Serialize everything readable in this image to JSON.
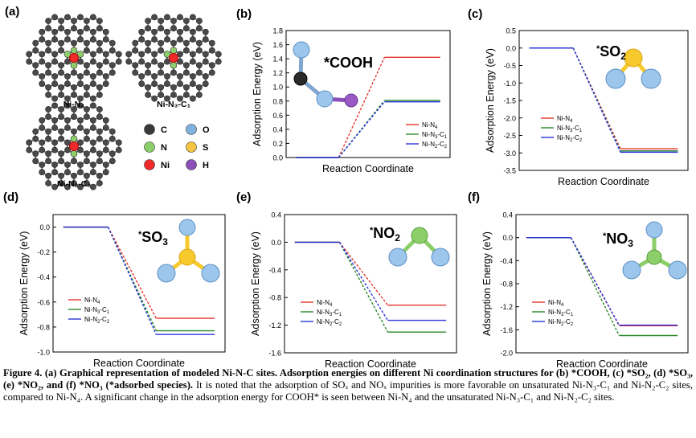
{
  "panel_a": {
    "label": "(a)",
    "structures": [
      "Ni-N₄",
      "Ni-N₃-C₁",
      "Ni-N₂-C₂"
    ],
    "legend": [
      {
        "sym": "C",
        "color": "#3a3a3a"
      },
      {
        "sym": "O",
        "color": "#7fb2e0"
      },
      {
        "sym": "N",
        "color": "#8ccf6a"
      },
      {
        "sym": "S",
        "color": "#f5c542"
      },
      {
        "sym": "Ni",
        "color": "#ee2a2a"
      },
      {
        "sym": "H",
        "color": "#8a4fb8"
      }
    ]
  },
  "colors": {
    "ni_n4": "#e8322b",
    "ni_n3c1": "#2a8a2a",
    "ni_n2c2": "#2b35d8"
  },
  "chart_data": [
    {
      "panel": "(b)",
      "type": "line",
      "species": "*COOH",
      "xlabel": "Reaction Coordinate",
      "ylabel": "Adsorption Energy (eV)",
      "ylim": [
        0.0,
        1.8
      ],
      "yticks": [
        "0.0",
        "0.2",
        "0.4",
        "0.6",
        "0.8",
        "1.0",
        "1.2",
        "1.4",
        "1.6",
        "1.8"
      ],
      "legend": [
        "Ni-N4",
        "Ni-N3-C1",
        "Ni-N2-C2"
      ],
      "legend_position": "lower-right",
      "series": [
        {
          "name": "Ni-N4",
          "values": [
            0.0,
            1.42
          ]
        },
        {
          "name": "Ni-N3-C1",
          "values": [
            0.0,
            0.81
          ]
        },
        {
          "name": "Ni-N2-C2",
          "values": [
            0.0,
            0.79
          ]
        }
      ]
    },
    {
      "panel": "(c)",
      "type": "line",
      "species": "SO2",
      "xlabel": "Reaction Coordinate",
      "ylabel": "Adsorption Energy (eV)",
      "ylim": [
        -3.5,
        0.5
      ],
      "yticks": [
        "0.5",
        "0.0",
        "-0.5",
        "-1.0",
        "-1.5",
        "-2.0",
        "-2.5",
        "-3.0",
        "-3.5"
      ],
      "legend": [
        "Ni-N4",
        "Ni-N3-C1",
        "Ni-N2-C2"
      ],
      "legend_position": "lower-left",
      "series": [
        {
          "name": "Ni-N4",
          "values": [
            0.0,
            -2.88
          ]
        },
        {
          "name": "Ni-N3-C1",
          "values": [
            0.0,
            -2.94
          ]
        },
        {
          "name": "Ni-N2-C2",
          "values": [
            0.0,
            -2.98
          ]
        }
      ]
    },
    {
      "panel": "(d)",
      "type": "line",
      "species": "SO3",
      "xlabel": "Reaction Coordinate",
      "ylabel": "Adsorption Energy (eV)",
      "ylim": [
        -1.0,
        0.1
      ],
      "yticks": [
        "0.0",
        "-0.2",
        "-0.4",
        "-0.6",
        "-0.8",
        "-1.0"
      ],
      "legend": [
        "Ni-N4",
        "Ni-N3-C1",
        "Ni-N2-C2"
      ],
      "legend_position": "lower-left",
      "series": [
        {
          "name": "Ni-N4",
          "values": [
            0.0,
            -0.73
          ]
        },
        {
          "name": "Ni-N3-C1",
          "values": [
            0.0,
            -0.83
          ]
        },
        {
          "name": "Ni-N2-C2",
          "values": [
            0.0,
            -0.86
          ]
        }
      ]
    },
    {
      "panel": "(e)",
      "type": "line",
      "species": "NO2",
      "xlabel": "Reaction Coordinate",
      "ylabel": "Adsorption Energy (eV)",
      "ylim": [
        -1.6,
        0.4
      ],
      "yticks": [
        "0.4",
        "0.0",
        "-0.4",
        "-0.8",
        "-1.2",
        "-1.6"
      ],
      "legend": [
        "Ni-N4",
        "Ni-N3-C1",
        "Ni-N2-C2"
      ],
      "legend_position": "lower-left",
      "series": [
        {
          "name": "Ni-N4",
          "values": [
            0.0,
            -0.91
          ]
        },
        {
          "name": "Ni-N3-C1",
          "values": [
            0.0,
            -1.3
          ]
        },
        {
          "name": "Ni-N2-C2",
          "values": [
            0.0,
            -1.13
          ]
        }
      ]
    },
    {
      "panel": "(f)",
      "type": "line",
      "species": "NO3",
      "xlabel": "Reaction Coordinate",
      "ylabel": "Adsorption Energy (eV)",
      "ylim": [
        -2.0,
        0.4
      ],
      "yticks": [
        "0.4",
        "0.0",
        "-0.4",
        "-0.8",
        "-1.2",
        "-1.6",
        "-2.0"
      ],
      "legend": [
        "Ni-N4",
        "Ni-N3-C1",
        "Ni-N2-C2"
      ],
      "legend_position": "lower-left",
      "series": [
        {
          "name": "Ni-N4",
          "values": [
            0.0,
            -1.53
          ]
        },
        {
          "name": "Ni-N3-C1",
          "values": [
            0.0,
            -1.7
          ]
        },
        {
          "name": "Ni-N2-C2",
          "values": [
            0.0,
            -1.52
          ]
        }
      ]
    }
  ],
  "caption": {
    "bold_lead": "Figure 4. (a) Graphical representation of modeled Ni-N-C sites. Adsorption energies on different Ni coordination structures for (b) *COOH, (c) *SO₂, (d) *SO₃, (e) *NO₂, and (f) *NO₃ (*adsorbed species).",
    "body": " It is noted that the adsorption of SOₓ and NOₓ impurities is more favorable on unsaturated Ni-N₃-C₁ and Ni-N₂-C₂ sites, compared to Ni-N₄. A significant change in the adsorption energy for COOH* is seen between Ni-N₄ and the unsaturated Ni-N₃-C₁ and Ni-N₂-C₂ sites."
  }
}
